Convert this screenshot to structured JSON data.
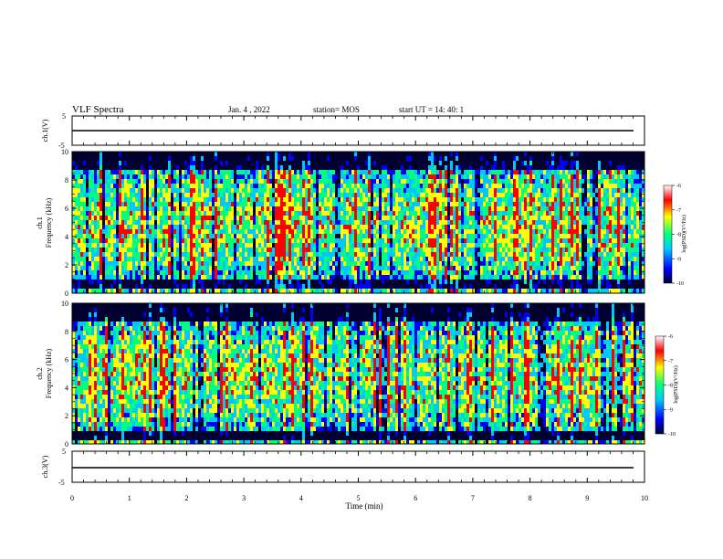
{
  "header": {
    "title": "VLF Spectra",
    "date": "Jan.  4  , 2022",
    "station": "station= MOS",
    "start": "start  UT  =   14: 40: 1"
  },
  "colors": {
    "background": "#ffffff",
    "axis": "#000000",
    "colormap": [
      "#000030",
      "#0000ff",
      "#00c8ff",
      "#00ff80",
      "#ffff00",
      "#ff0000",
      "#ffffff"
    ]
  },
  "chart_data": [
    {
      "type": "line",
      "id": "ch1-voltage",
      "ylabel": "ch.1(V)",
      "ylim": [
        -5,
        5
      ],
      "yticks": [
        "5",
        "-5"
      ],
      "series": [
        {
          "values_description_free": true,
          "level": 0
        }
      ]
    },
    {
      "type": "heatmap",
      "id": "ch1-spectrogram",
      "ylabel_line1": "ch.1",
      "ylabel_line2": "Frequency (kHz)",
      "ylim": [
        0,
        10
      ],
      "yticks": [
        "0",
        "2",
        "4",
        "6",
        "8",
        "10"
      ],
      "colorbar": {
        "label": "log(PSD)(V²/Hz)",
        "range": [
          -10,
          -6
        ],
        "ticks": [
          "-6",
          "-7",
          "-8",
          "-9",
          "-10"
        ]
      }
    },
    {
      "type": "heatmap",
      "id": "ch2-spectrogram",
      "ylabel_line1": "ch.2",
      "ylabel_line2": "Frequency (kHz)",
      "ylim": [
        0,
        10
      ],
      "yticks": [
        "0",
        "2",
        "4",
        "6",
        "8",
        "10"
      ],
      "colorbar": {
        "label": "log(PSD)(V²/Hz)",
        "range": [
          -10,
          -6
        ],
        "ticks": [
          "-6",
          "-7",
          "-8",
          "-9",
          "-10"
        ]
      }
    },
    {
      "type": "line",
      "id": "ch3-voltage",
      "ylabel": "ch.3(V)",
      "ylim": [
        -5,
        5
      ],
      "yticks": [
        "5",
        "-5"
      ],
      "series": [
        {
          "level": 0
        }
      ]
    }
  ],
  "xaxis": {
    "label": "Time  (min)",
    "xlim": [
      0,
      10
    ],
    "ticks": [
      "0",
      "1",
      "2",
      "3",
      "4",
      "5",
      "6",
      "7",
      "8",
      "9",
      "10"
    ]
  }
}
